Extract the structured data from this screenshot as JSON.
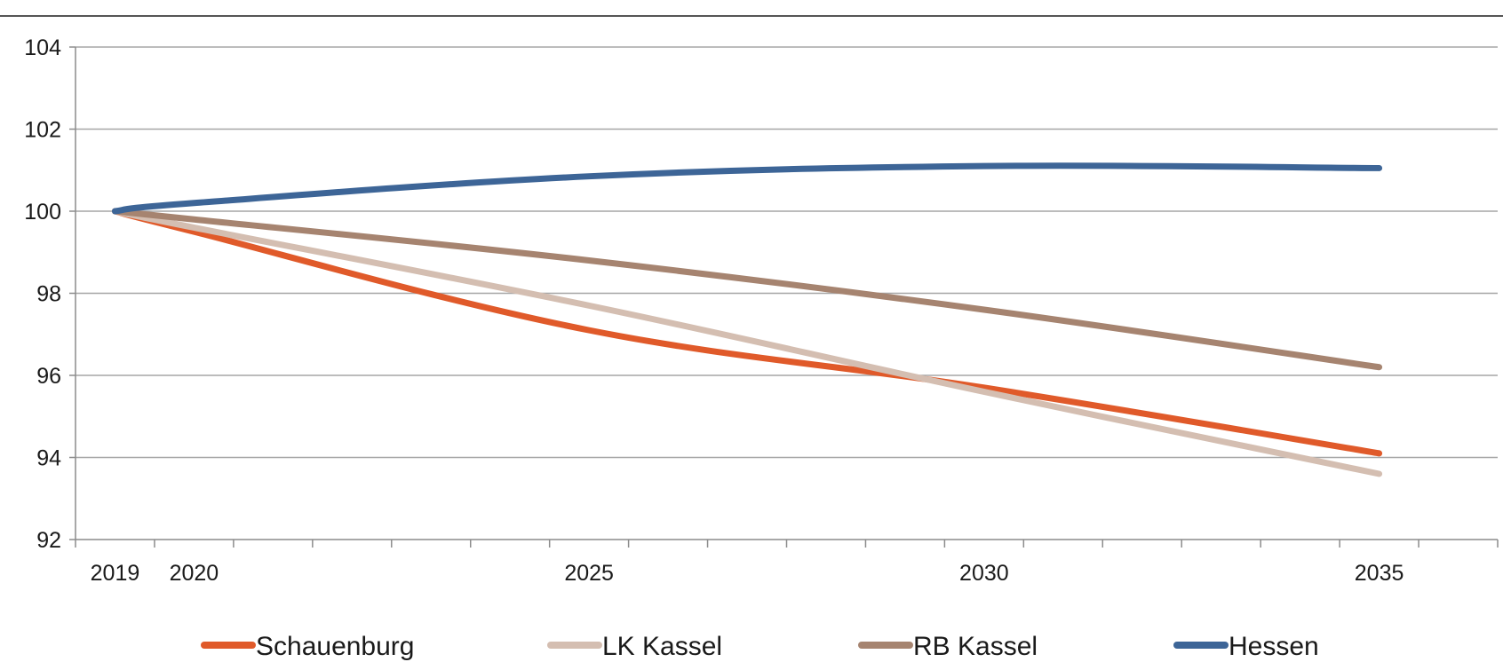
{
  "chart_data": {
    "type": "line",
    "x": [
      2019,
      2020,
      2025,
      2030,
      2035
    ],
    "x_ticks": [
      "2019",
      "2020",
      "2025",
      "2030",
      "2035"
    ],
    "xlim": [
      2018.5,
      2036.5
    ],
    "ylim": [
      92,
      104
    ],
    "y_ticks": [
      "92",
      "94",
      "96",
      "98",
      "100",
      "102",
      "104"
    ],
    "grid": "horizontal",
    "legend_position": "bottom",
    "series": [
      {
        "name": "Schauenburg",
        "color": "#e05a2a",
        "values": [
          100,
          99.5,
          97.1,
          95.7,
          94.1
        ]
      },
      {
        "name": "LK Kassel",
        "color": "#d4beb1",
        "values": [
          100,
          99.6,
          97.7,
          95.6,
          93.6
        ]
      },
      {
        "name": "RB Kassel",
        "color": "#a68470",
        "values": [
          100,
          99.8,
          98.8,
          97.6,
          96.2
        ]
      },
      {
        "name": "Hessen",
        "color": "#3d6597",
        "values": [
          100,
          100.2,
          100.85,
          101.1,
          101.05
        ]
      }
    ]
  }
}
